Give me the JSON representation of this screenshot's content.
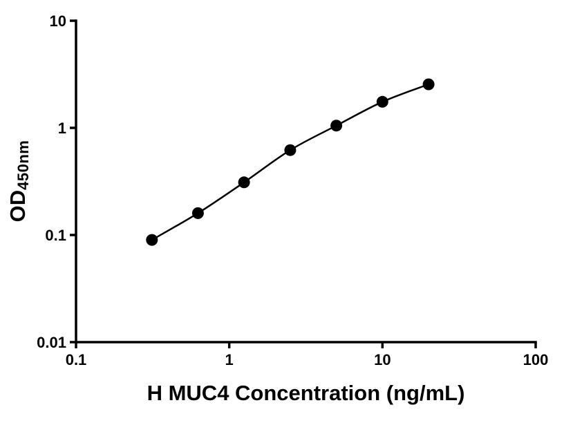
{
  "chart_data": {
    "type": "line",
    "markers": true,
    "title": "",
    "xlabel": "H MUC4 Concentration (ng/mL)",
    "ylabel": "OD",
    "ylabel_sub": "450nm",
    "x": [
      0.313,
      0.625,
      1.25,
      2.5,
      5,
      10,
      20
    ],
    "y": [
      0.09,
      0.16,
      0.31,
      0.62,
      1.05,
      1.75,
      2.55
    ],
    "xscale": "log",
    "yscale": "log",
    "xlim": [
      0.1,
      100
    ],
    "ylim": [
      0.01,
      10
    ],
    "x_ticks": [
      0.1,
      1,
      10,
      100
    ],
    "x_tick_labels": [
      "0.1",
      "1",
      "10",
      "100"
    ],
    "y_ticks": [
      0.01,
      0.1,
      1,
      10
    ],
    "y_tick_labels": [
      "0.01",
      "0.1",
      "1",
      "10"
    ],
    "grid": false,
    "legend": "none",
    "axis_color": "#000000",
    "line_color": "#000000",
    "marker_color": "#000000",
    "background": "#ffffff"
  }
}
